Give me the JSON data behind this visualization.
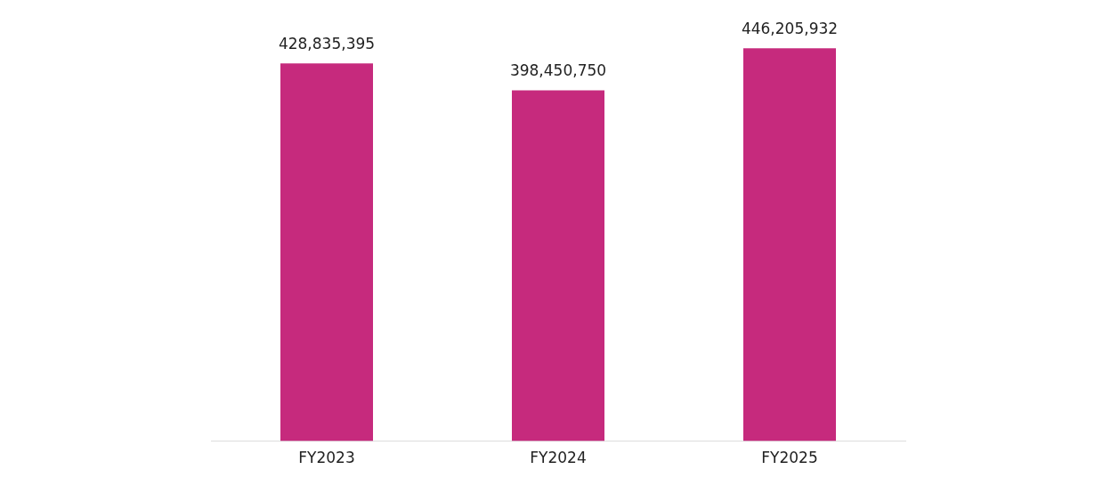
{
  "chart_data": {
    "type": "bar",
    "categories": [
      "FY2023",
      "FY2024",
      "FY2025"
    ],
    "values": [
      428835395,
      398450750,
      446205932
    ],
    "value_labels": [
      "428,835,395",
      "398,450,750",
      "446,205,932"
    ],
    "color": "#c62a7d",
    "grid": false,
    "legend": false
  }
}
